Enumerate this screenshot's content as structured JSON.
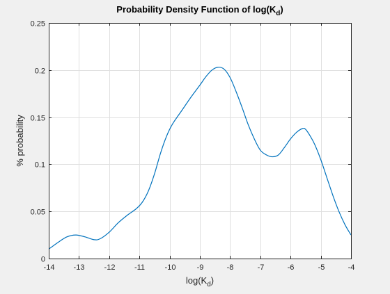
{
  "chart_data": {
    "type": "line",
    "title": "Probability Density Function of log(K",
    "title_subscript": "d",
    "title_suffix": ")",
    "xlabel": "log(K",
    "xlabel_subscript": "d",
    "xlabel_suffix": ")",
    "ylabel": "% probability",
    "xlim": [
      -14,
      -4
    ],
    "ylim": [
      0,
      0.25
    ],
    "xticks": [
      -14,
      -13,
      -12,
      -11,
      -10,
      -9,
      -8,
      -7,
      -6,
      -5,
      -4
    ],
    "xtick_labels": [
      "-14",
      "-13",
      "-12",
      "-11",
      "-10",
      "-9",
      "-8",
      "-7",
      "-6",
      "-5",
      "-4"
    ],
    "yticks": [
      0,
      0.05,
      0.1,
      0.15,
      0.2,
      0.25
    ],
    "ytick_labels": [
      "0",
      "0.05",
      "0.1",
      "0.15",
      "0.2",
      "0.25"
    ],
    "grid": true,
    "line_color": "#0072bd",
    "series": [
      {
        "x": [
          -14.0,
          -13.7,
          -13.4,
          -13.1,
          -12.8,
          -12.5,
          -12.3,
          -12.0,
          -11.7,
          -11.4,
          -11.1,
          -10.9,
          -10.7,
          -10.5,
          -10.3,
          -10.1,
          -9.9,
          -9.6,
          -9.3,
          -9.0,
          -8.8,
          -8.6,
          -8.4,
          -8.2,
          -8.0,
          -7.8,
          -7.6,
          -7.4,
          -7.2,
          -7.0,
          -6.8,
          -6.6,
          -6.4,
          -6.2,
          -6.0,
          -5.8,
          -5.6,
          -5.5,
          -5.35,
          -5.2,
          -5.0,
          -4.8,
          -4.6,
          -4.4,
          -4.2,
          -4.0
        ],
        "y": [
          0.01,
          0.017,
          0.023,
          0.025,
          0.023,
          0.02,
          0.021,
          0.028,
          0.038,
          0.046,
          0.053,
          0.06,
          0.072,
          0.09,
          0.112,
          0.13,
          0.143,
          0.157,
          0.171,
          0.184,
          0.193,
          0.2,
          0.203,
          0.201,
          0.192,
          0.177,
          0.16,
          0.142,
          0.127,
          0.115,
          0.11,
          0.108,
          0.11,
          0.118,
          0.127,
          0.134,
          0.138,
          0.137,
          0.13,
          0.121,
          0.105,
          0.086,
          0.067,
          0.05,
          0.036,
          0.025
        ]
      }
    ]
  }
}
